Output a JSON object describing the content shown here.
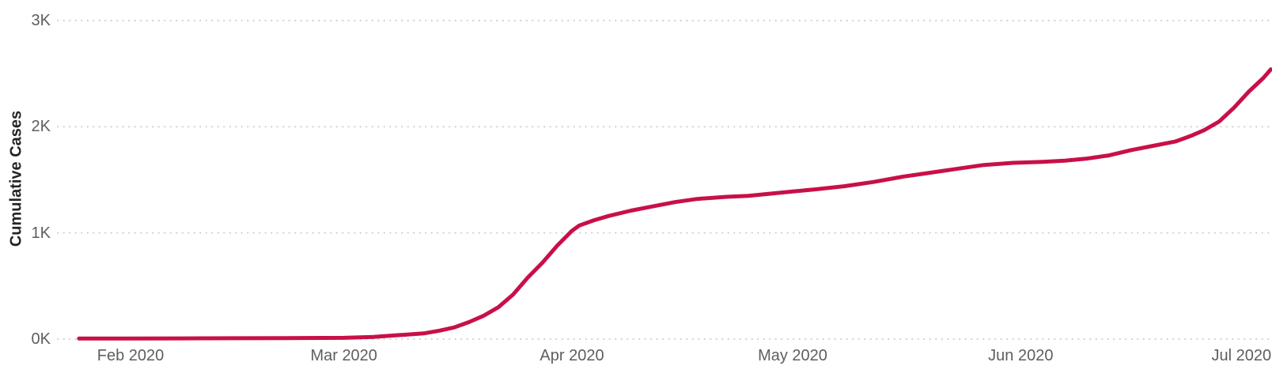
{
  "colors": {
    "line": "#C81048",
    "axis_label": "#605E5C",
    "axis_title": "#252423",
    "gridline": "#D2D2D2",
    "background": "#FFFFFF"
  },
  "chart_data": {
    "type": "line",
    "title": "",
    "xlabel": "",
    "ylabel": "Cumulative Cases",
    "y_unit": "thousands of cases",
    "ylim": [
      0,
      3
    ],
    "grid": "dotted-horizontal",
    "legend": "none",
    "yticks": [
      {
        "value": 0,
        "label": "0K"
      },
      {
        "value": 1,
        "label": "1K"
      },
      {
        "value": 2,
        "label": "2K"
      },
      {
        "value": 3,
        "label": "3K"
      }
    ],
    "xticks": [
      {
        "date": "2020-02-01",
        "label": "Feb 2020"
      },
      {
        "date": "2020-03-01",
        "label": "Mar 2020"
      },
      {
        "date": "2020-04-01",
        "label": "Apr 2020"
      },
      {
        "date": "2020-05-01",
        "label": "May 2020"
      },
      {
        "date": "2020-06-01",
        "label": "Jun 2020"
      },
      {
        "date": "2020-07-01",
        "label": "Jul 2020"
      }
    ],
    "series": [
      {
        "name": "Cumulative Cases",
        "color": "#C81048",
        "points": [
          {
            "date": "2020-01-25",
            "value": 0.005
          },
          {
            "date": "2020-02-01",
            "value": 0.005
          },
          {
            "date": "2020-02-08",
            "value": 0.007
          },
          {
            "date": "2020-02-15",
            "value": 0.008
          },
          {
            "date": "2020-02-22",
            "value": 0.01
          },
          {
            "date": "2020-03-01",
            "value": 0.012
          },
          {
            "date": "2020-03-05",
            "value": 0.02
          },
          {
            "date": "2020-03-08",
            "value": 0.035
          },
          {
            "date": "2020-03-10",
            "value": 0.045
          },
          {
            "date": "2020-03-12",
            "value": 0.055
          },
          {
            "date": "2020-03-14",
            "value": 0.08
          },
          {
            "date": "2020-03-16",
            "value": 0.11
          },
          {
            "date": "2020-03-18",
            "value": 0.16
          },
          {
            "date": "2020-03-20",
            "value": 0.22
          },
          {
            "date": "2020-03-22",
            "value": 0.3
          },
          {
            "date": "2020-03-24",
            "value": 0.42
          },
          {
            "date": "2020-03-26",
            "value": 0.58
          },
          {
            "date": "2020-03-28",
            "value": 0.72
          },
          {
            "date": "2020-03-30",
            "value": 0.88
          },
          {
            "date": "2020-04-01",
            "value": 1.02
          },
          {
            "date": "2020-04-02",
            "value": 1.07
          },
          {
            "date": "2020-04-04",
            "value": 1.12
          },
          {
            "date": "2020-04-06",
            "value": 1.16
          },
          {
            "date": "2020-04-09",
            "value": 1.21
          },
          {
            "date": "2020-04-12",
            "value": 1.25
          },
          {
            "date": "2020-04-15",
            "value": 1.29
          },
          {
            "date": "2020-04-18",
            "value": 1.32
          },
          {
            "date": "2020-04-22",
            "value": 1.34
          },
          {
            "date": "2020-04-25",
            "value": 1.35
          },
          {
            "date": "2020-04-28",
            "value": 1.37
          },
          {
            "date": "2020-05-01",
            "value": 1.39
          },
          {
            "date": "2020-05-04",
            "value": 1.41
          },
          {
            "date": "2020-05-08",
            "value": 1.44
          },
          {
            "date": "2020-05-12",
            "value": 1.48
          },
          {
            "date": "2020-05-16",
            "value": 1.53
          },
          {
            "date": "2020-05-20",
            "value": 1.57
          },
          {
            "date": "2020-05-24",
            "value": 1.61
          },
          {
            "date": "2020-05-27",
            "value": 1.64
          },
          {
            "date": "2020-05-31",
            "value": 1.66
          },
          {
            "date": "2020-06-04",
            "value": 1.67
          },
          {
            "date": "2020-06-07",
            "value": 1.68
          },
          {
            "date": "2020-06-10",
            "value": 1.7
          },
          {
            "date": "2020-06-13",
            "value": 1.73
          },
          {
            "date": "2020-06-16",
            "value": 1.78
          },
          {
            "date": "2020-06-19",
            "value": 1.82
          },
          {
            "date": "2020-06-22",
            "value": 1.86
          },
          {
            "date": "2020-06-24",
            "value": 1.91
          },
          {
            "date": "2020-06-26",
            "value": 1.97
          },
          {
            "date": "2020-06-28",
            "value": 2.05
          },
          {
            "date": "2020-06-30",
            "value": 2.18
          },
          {
            "date": "2020-07-02",
            "value": 2.33
          },
          {
            "date": "2020-07-04",
            "value": 2.46
          },
          {
            "date": "2020-07-05",
            "value": 2.54
          }
        ]
      }
    ]
  }
}
